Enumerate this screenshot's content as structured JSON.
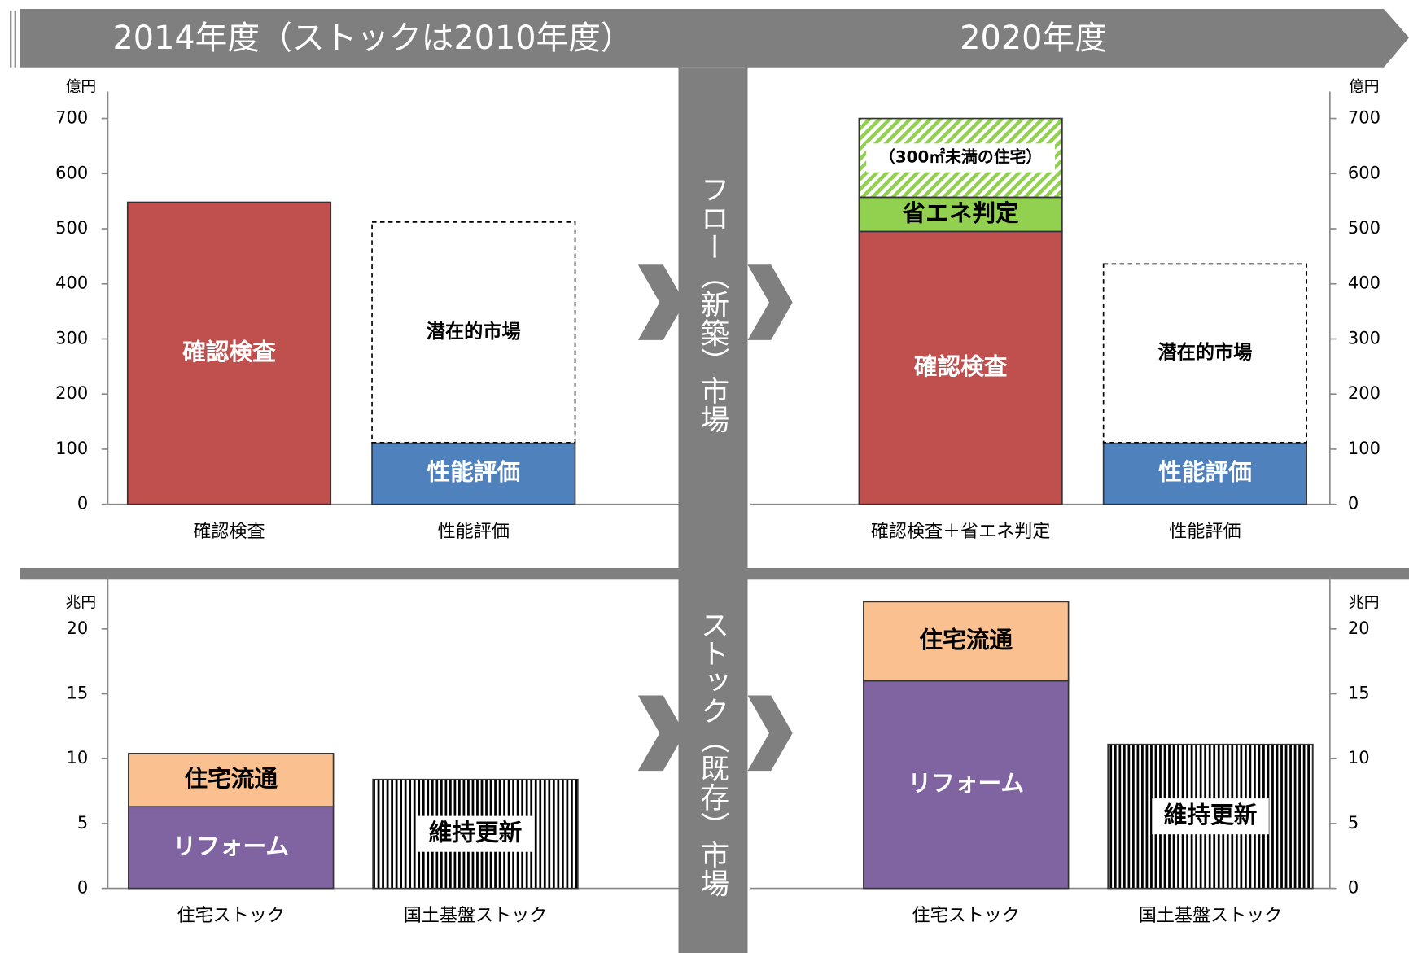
{
  "headers": {
    "left": "2014年度（ストックは2010年度）",
    "right": "2020年度"
  },
  "markets": {
    "flow": "フロー（新築）市場",
    "stock": "ストック（既存）市場"
  },
  "chart_data": [
    {
      "type": "bar",
      "stacked": true,
      "unit": "億円",
      "categories": [
        "確認検査",
        "性能評価"
      ],
      "ylim": [
        0,
        700
      ],
      "yticks": [
        0,
        100,
        200,
        300,
        400,
        500,
        600,
        700
      ],
      "series": [
        {
          "name": "確認検査",
          "color": "#c0504d",
          "text_color": "#ffffff",
          "values": [
            548,
            null
          ]
        },
        {
          "name": "性能評価",
          "color": "#4f81bd",
          "text_color": "#ffffff",
          "values": [
            null,
            112
          ]
        },
        {
          "name": "潜在的市場",
          "color": "#ffffff",
          "pattern": "dashed",
          "text_color": "#000000",
          "values": [
            null,
            400
          ]
        }
      ]
    },
    {
      "type": "bar",
      "stacked": true,
      "unit": "億円",
      "categories": [
        "確認検査＋省エネ判定",
        "性能評価"
      ],
      "ylim": [
        0,
        700
      ],
      "yticks": [
        0,
        100,
        200,
        300,
        400,
        500,
        600,
        700
      ],
      "series": [
        {
          "name": "確認検査",
          "color": "#c0504d",
          "text_color": "#ffffff",
          "values": [
            495,
            null
          ]
        },
        {
          "name": "省エネ判定",
          "color": "#92d050",
          "text_color": "#000000",
          "values": [
            62,
            null
          ]
        },
        {
          "name": "（300㎡未満の住宅）",
          "color": "#92d050",
          "pattern": "hatch",
          "text_color": "#000000",
          "values": [
            143,
            null
          ]
        },
        {
          "name": "性能評価",
          "color": "#4f81bd",
          "text_color": "#ffffff",
          "values": [
            null,
            112
          ]
        },
        {
          "name": "潜在的市場",
          "color": "#ffffff",
          "pattern": "dashed",
          "text_color": "#000000",
          "values": [
            null,
            324
          ]
        }
      ]
    },
    {
      "type": "bar",
      "stacked": true,
      "unit": "兆円",
      "categories": [
        "住宅ストック",
        "国土基盤ストック"
      ],
      "ylim": [
        0,
        22
      ],
      "yticks": [
        0,
        5,
        10,
        15,
        20
      ],
      "series": [
        {
          "name": "リフォーム",
          "color": "#8064a2",
          "text_color": "#ffffff",
          "values": [
            6.3,
            null
          ]
        },
        {
          "name": "住宅流通",
          "color": "#fac090",
          "text_color": "#000000",
          "values": [
            4.1,
            null
          ]
        },
        {
          "name": "維持更新",
          "color": "#000000",
          "pattern": "stripes",
          "text_color": "#000000",
          "values": [
            null,
            8.4
          ]
        }
      ]
    },
    {
      "type": "bar",
      "stacked": true,
      "unit": "兆円",
      "categories": [
        "住宅ストック",
        "国土基盤ストック"
      ],
      "ylim": [
        0,
        22
      ],
      "yticks": [
        0,
        5,
        10,
        15,
        20
      ],
      "series": [
        {
          "name": "リフォーム",
          "color": "#8064a2",
          "text_color": "#ffffff",
          "values": [
            16,
            null
          ]
        },
        {
          "name": "住宅流通",
          "color": "#fac090",
          "text_color": "#000000",
          "values": [
            6.1,
            null
          ]
        },
        {
          "name": "維持更新",
          "color": "#000000",
          "pattern": "stripes",
          "text_color": "#000000",
          "values": [
            null,
            11.1
          ]
        }
      ]
    }
  ]
}
